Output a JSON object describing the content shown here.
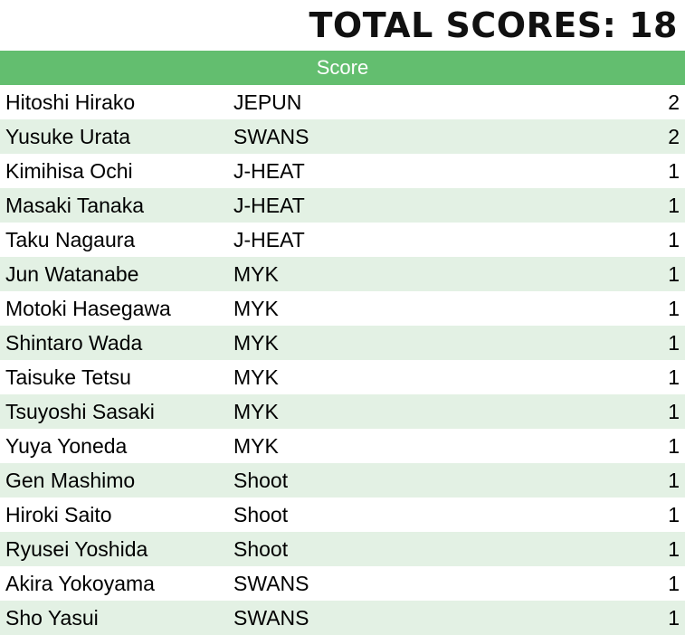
{
  "title": "TOTAL SCORES: 18",
  "header": {
    "score_label": "Score"
  },
  "rows": [
    {
      "name": "Hitoshi Hirako",
      "team": "JEPUN",
      "score": "2"
    },
    {
      "name": "Yusuke Urata",
      "team": "SWANS",
      "score": "2"
    },
    {
      "name": "Kimihisa Ochi",
      "team": "J-HEAT",
      "score": "1"
    },
    {
      "name": "Masaki Tanaka",
      "team": "J-HEAT",
      "score": "1"
    },
    {
      "name": "Taku Nagaura",
      "team": "J-HEAT",
      "score": "1"
    },
    {
      "name": "Jun Watanabe",
      "team": "MYK",
      "score": "1"
    },
    {
      "name": "Motoki Hasegawa",
      "team": "MYK",
      "score": "1"
    },
    {
      "name": "Shintaro Wada",
      "team": "MYK",
      "score": "1"
    },
    {
      "name": "Taisuke Tetsu",
      "team": "MYK",
      "score": "1"
    },
    {
      "name": "Tsuyoshi Sasaki",
      "team": "MYK",
      "score": "1"
    },
    {
      "name": "Yuya Yoneda",
      "team": "MYK",
      "score": "1"
    },
    {
      "name": "Gen Mashimo",
      "team": "Shoot",
      "score": "1"
    },
    {
      "name": "Hiroki Saito",
      "team": "Shoot",
      "score": "1"
    },
    {
      "name": "Ryusei Yoshida",
      "team": "Shoot",
      "score": "1"
    },
    {
      "name": "Akira Yokoyama",
      "team": "SWANS",
      "score": "1"
    },
    {
      "name": "Sho Yasui",
      "team": "SWANS",
      "score": "1"
    }
  ],
  "colors": {
    "header_bg": "#63be6f",
    "header_text": "#ffffff",
    "row_alt_bg": "#e3f1e4"
  }
}
